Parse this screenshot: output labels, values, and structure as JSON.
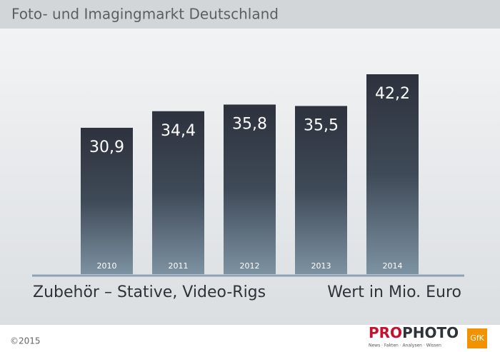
{
  "chart_data": {
    "type": "bar",
    "title": "Foto- und Imagingmarkt Deutschland",
    "subtitle": "Zubehör – Stative, Video-Rigs",
    "unit_label": "Wert in Mio. Euro",
    "categories": [
      "2010",
      "2011",
      "2012",
      "2013",
      "2014"
    ],
    "values": [
      30.9,
      34.4,
      35.8,
      35.5,
      42.2
    ],
    "value_labels": [
      "30,9",
      "34,4",
      "35,8",
      "35,5",
      "42,2"
    ],
    "copyright": "©2015",
    "logo": {
      "brand_a": "PRO",
      "brand_b": "PHOTO",
      "tagline": "News · Fakten · Analysen · Wissen",
      "partner": "GfK"
    }
  }
}
